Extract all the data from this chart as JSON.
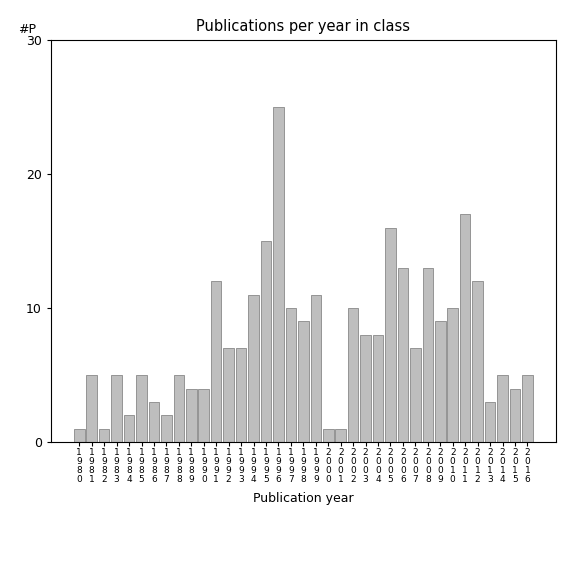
{
  "title": "Publications per year in class",
  "xlabel": "Publication year",
  "ylabel": "#P",
  "ylim": [
    0,
    30
  ],
  "yticks": [
    0,
    10,
    20,
    30
  ],
  "bar_color": "#bebebe",
  "bar_edgecolor": "#888888",
  "years": [
    "1980",
    "1981",
    "1982",
    "1983",
    "1984",
    "1985",
    "1986",
    "1987",
    "1988",
    "1989",
    "1990",
    "1991",
    "1992",
    "1993",
    "1994",
    "1995",
    "1996",
    "1997",
    "1998",
    "1999",
    "2000",
    "2001",
    "2002",
    "2003",
    "2004",
    "2005",
    "2006",
    "2007",
    "2008",
    "2009",
    "2010",
    "2011",
    "2012",
    "2013",
    "2014",
    "2015",
    "2016"
  ],
  "values": [
    1,
    5,
    1,
    5,
    2,
    5,
    3,
    2,
    5,
    4,
    4,
    12,
    7,
    7,
    11,
    15,
    25,
    10,
    9,
    11,
    1,
    1,
    10,
    8,
    8,
    16,
    13,
    7,
    13,
    9,
    10,
    17,
    12,
    3,
    5,
    4,
    5
  ]
}
